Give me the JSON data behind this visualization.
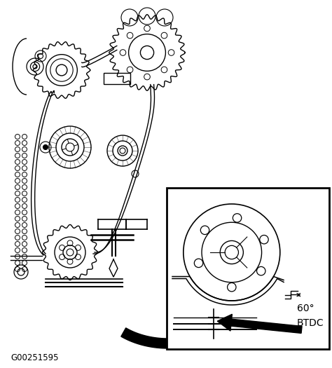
{
  "bg_color": "#ffffff",
  "line_color": "#000000",
  "figure_label": "G00251595",
  "inset_label_line1": "60°",
  "inset_label_line2": "BTDC",
  "figsize": [
    4.74,
    5.25
  ],
  "dpi": 100
}
